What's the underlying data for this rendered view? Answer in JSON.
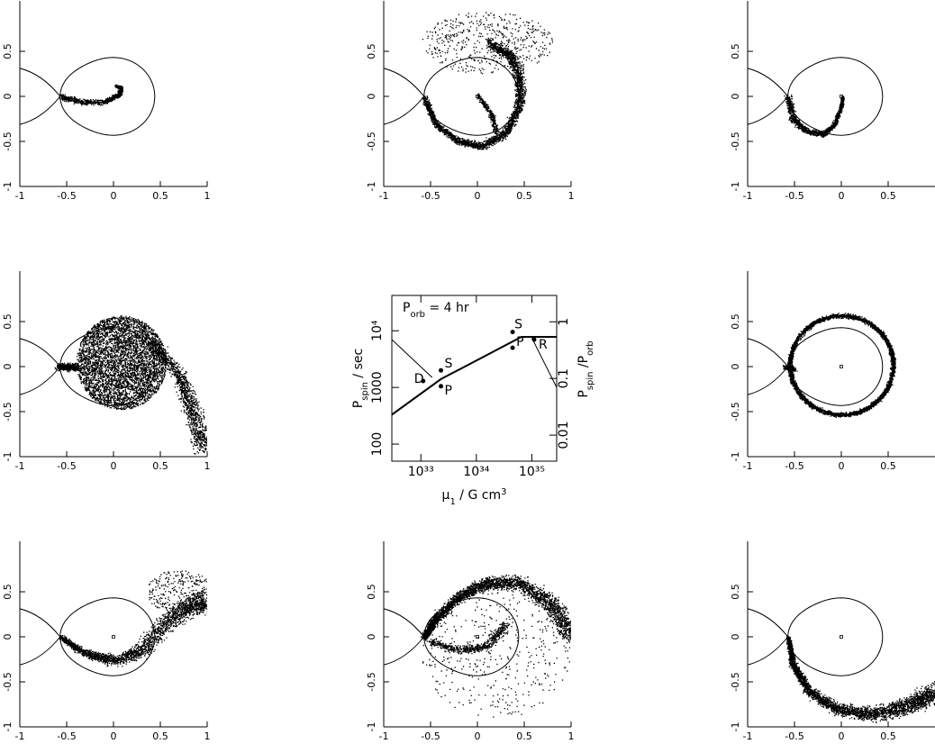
{
  "chart_data": [
    {
      "type": "particles",
      "xlim": [
        -1,
        1
      ],
      "ylim": [
        -1,
        1
      ],
      "xticks": [
        -1,
        -0.5,
        0,
        0.5,
        1
      ],
      "yticks": [
        -1,
        -0.5,
        0,
        0.5
      ]
    },
    {
      "type": "particles",
      "xlim": [
        -1,
        1
      ],
      "ylim": [
        -1,
        1
      ],
      "xticks": [
        -1,
        -0.5,
        0,
        0.5,
        1
      ],
      "yticks": [
        -1,
        -0.5,
        0,
        0.5
      ]
    },
    {
      "type": "particles",
      "xlim": [
        -1,
        1
      ],
      "ylim": [
        -1,
        1
      ],
      "xticks": [
        -1,
        -0.5,
        0,
        0.5
      ],
      "yticks": [
        -1,
        -0.5,
        0,
        0.5
      ]
    },
    {
      "type": "particles",
      "xlim": [
        -1,
        1
      ],
      "ylim": [
        -1,
        1
      ],
      "xticks": [
        -1,
        -0.5,
        0,
        0.5,
        1
      ],
      "yticks": [
        -1,
        -0.5,
        0,
        0.5
      ]
    },
    {
      "type": "loglog",
      "annotation": [
        {
          "text": "P"
        },
        {
          "text": "orb",
          "shift": "sub"
        },
        {
          "text": " = 4 hr"
        }
      ],
      "xlabel": [
        {
          "text": "μ"
        },
        {
          "text": "1",
          "shift": "sub"
        },
        {
          "text": " / G cm"
        },
        {
          "text": "3",
          "shift": "super"
        }
      ],
      "ylabel": [
        {
          "text": "P"
        },
        {
          "text": "spin",
          "shift": "sub"
        },
        {
          "text": " / sec"
        }
      ],
      "y2label": [
        {
          "text": "P"
        },
        {
          "text": "spin",
          "shift": "sub"
        },
        {
          "text": " /P"
        },
        {
          "text": "orb",
          "shift": "sub"
        }
      ],
      "xlim": [
        3e+32,
        2.8e+35
      ],
      "ylim": [
        50,
        42000
      ],
      "y2lim": [
        0.00347,
        2.92
      ],
      "xticks": [
        {
          "value": 1e+33,
          "label": "10³³"
        },
        {
          "value": 1e+34,
          "label": "10³⁴"
        },
        {
          "value": 1e+35,
          "label": "10³⁵"
        }
      ],
      "yticks": [
        100,
        1000,
        {
          "value": 10000,
          "label": "10⁴"
        }
      ],
      "y2ticks": [
        0.01,
        0.1,
        1
      ],
      "color": "#000000",
      "series": [
        {
          "kind": "line",
          "width": 2,
          "x": [
            3e+32,
            2.3e+33,
            6.5e+34,
            2.8e+35
          ],
          "values": [
            330,
            1400,
            7800,
            7800
          ]
        },
        {
          "kind": "line",
          "width": 1,
          "x": [
            3e+32,
            1.6e+33
          ],
          "values": [
            7000,
            1500
          ]
        },
        {
          "kind": "line",
          "width": 1,
          "x": [
            1e+35,
            2.8e+35
          ],
          "values": [
            7500,
            1000
          ]
        },
        {
          "kind": "points",
          "x": [
            1.1e+33,
            2.3e+33,
            2.3e+33,
            4.5e+34,
            4.5e+34,
            1.1e+35
          ],
          "values": [
            1300,
            2000,
            1050,
            9500,
            5000,
            7000
          ],
          "labels": [
            "D",
            "S",
            "P",
            "S",
            "P",
            "R"
          ]
        }
      ]
    },
    {
      "type": "particles",
      "xlim": [
        -1,
        1
      ],
      "ylim": [
        -1,
        1
      ],
      "xticks": [
        -1,
        -0.5,
        0,
        0.5
      ],
      "yticks": [
        -1,
        -0.5,
        0,
        0.5
      ]
    },
    {
      "type": "particles",
      "xlim": [
        -1,
        1
      ],
      "ylim": [
        -1,
        1
      ],
      "xticks": [
        -1,
        -0.5,
        0,
        0.5,
        1
      ],
      "yticks": [
        -1,
        -0.5,
        0,
        0.5
      ]
    },
    {
      "type": "particles",
      "xlim": [
        -1,
        1
      ],
      "ylim": [
        -1,
        1
      ],
      "xticks": [
        -1,
        -0.5,
        0,
        0.5,
        1
      ],
      "yticks": [
        -1,
        -0.5,
        0,
        0.5
      ]
    },
    {
      "type": "particles",
      "xlim": [
        -1,
        1
      ],
      "ylim": [
        -1,
        1
      ],
      "xticks": [
        -1,
        -0.5,
        0,
        0.5
      ],
      "yticks": [
        -1,
        -0.5,
        0,
        0.5
      ]
    }
  ]
}
